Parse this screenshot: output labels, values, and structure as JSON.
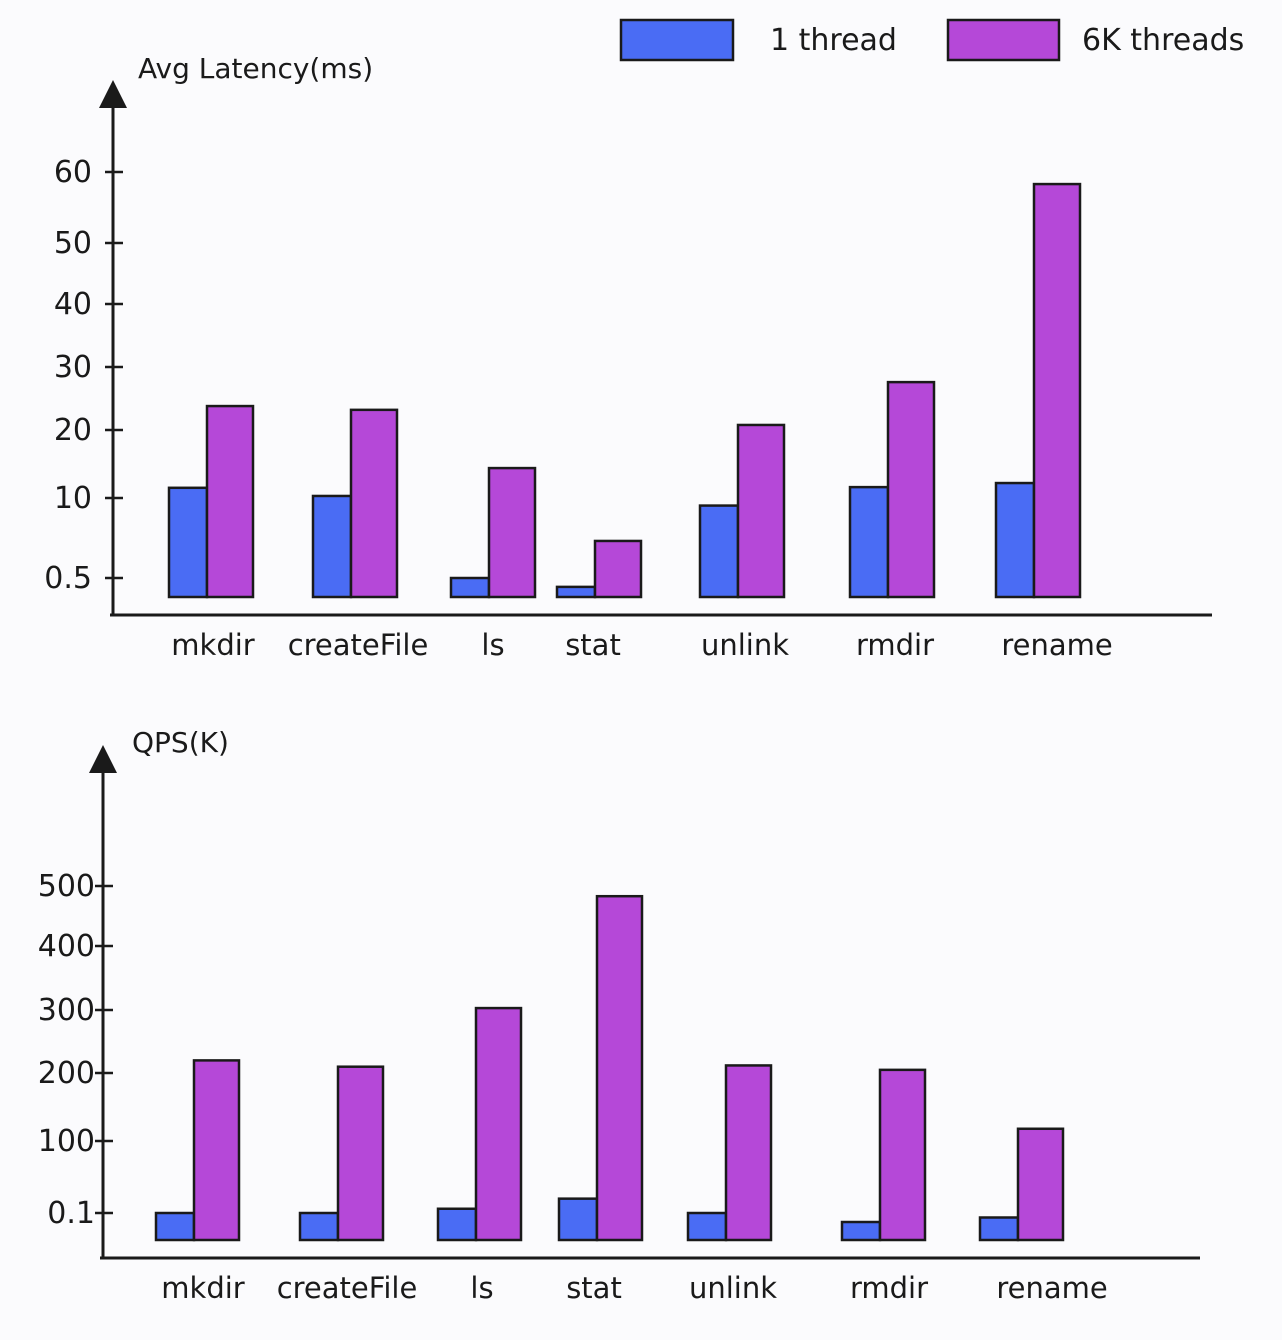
{
  "legend": [
    "1 thread",
    "6K threads"
  ],
  "colors": {
    "1 thread": "#4a6cf4",
    "6K threads": "#b548d8",
    "axis": "#1a1a1a"
  },
  "chart_data": [
    {
      "type": "bar",
      "title": "",
      "ylabel": "Avg Latency(ms)",
      "xlabel": "",
      "yticks": [
        0.5,
        10,
        20,
        30,
        40,
        50,
        60
      ],
      "ytick_labels": [
        "0.5",
        "10",
        "20",
        "30",
        "40",
        "50",
        "60"
      ],
      "categories": [
        "mkdir",
        "createFile",
        "ls",
        "stat",
        "unlink",
        "rmdir",
        "rename"
      ],
      "series": [
        {
          "name": "1 thread",
          "values": [
            11.5,
            10.3,
            0.5,
            0.38,
            9.1,
            11.6,
            12.2
          ]
        },
        {
          "name": "6K threads",
          "values": [
            23.8,
            23.2,
            14.4,
            4.9,
            20.8,
            27.6,
            58.3
          ]
        }
      ],
      "legend_position": "top-right",
      "grid": false
    },
    {
      "type": "bar",
      "title": "",
      "ylabel": "QPS(K)",
      "xlabel": "",
      "yticks": [
        0.1,
        100,
        200,
        300,
        400,
        500
      ],
      "ytick_labels": [
        "0.1",
        "100",
        "200",
        "300",
        "400",
        "500"
      ],
      "categories": [
        "mkdir",
        "createFile",
        "ls",
        "stat",
        "unlink",
        "rmdir",
        "rename"
      ],
      "series": [
        {
          "name": "1 thread",
          "values": [
            0.1,
            0.1,
            6,
            20,
            0.1,
            0.08,
            0.09
          ]
        },
        {
          "name": "6K threads",
          "values": [
            220,
            210,
            303,
            483,
            212,
            205,
            118
          ]
        }
      ],
      "grid": false
    }
  ]
}
